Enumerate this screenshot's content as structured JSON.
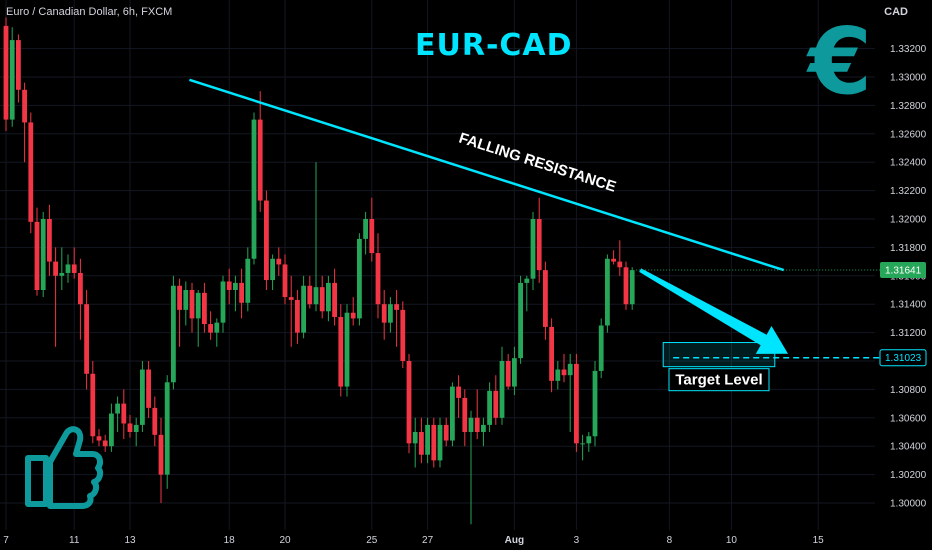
{
  "header": {
    "symbol_label": "Euro / Canadian Dollar, 6h, FXCM",
    "currency_label": "CAD"
  },
  "overlay": {
    "title": "EUR-CAD",
    "resistance_label": "FALLING RESISTANCE",
    "target_label": "Target Level",
    "euro_icon": "euro-sign-icon",
    "thumb_icon": "thumbs-up-icon"
  },
  "colors": {
    "background": "#000000",
    "up": "#26a658",
    "down": "#f23645",
    "accent": "#00e5ff",
    "euro": "#0e9a9c",
    "axis_text": "#d1d4dc"
  },
  "chart_data": {
    "type": "candlestick",
    "symbol": "EURCAD",
    "timeframe": "6h",
    "ylim": [
      1.299,
      1.335
    ],
    "y_ticks": [
      1.3,
      1.302,
      1.304,
      1.306,
      1.308,
      1.31,
      1.312,
      1.314,
      1.316,
      1.318,
      1.32,
      1.322,
      1.324,
      1.326,
      1.328,
      1.33,
      1.332
    ],
    "y_tick_labels": [
      "1.30000",
      "1.30200",
      "1.30400",
      "1.30600",
      "1.30800",
      "1.31000",
      "1.31200",
      "1.31400",
      "1.31600",
      "1.31800",
      "1.32000",
      "1.32200",
      "1.32400",
      "1.32600",
      "1.32800",
      "1.33000",
      "1.33200"
    ],
    "x_labels": [
      "7",
      "11",
      "13",
      "18",
      "20",
      "25",
      "27",
      "Aug",
      "3",
      "8",
      "10",
      "15"
    ],
    "x_label_index": [
      0,
      11,
      20,
      36,
      45,
      59,
      68,
      82,
      92,
      107,
      117,
      131
    ],
    "current_price": 1.31641,
    "current_price_label": "1.31641",
    "target_price": 1.31023,
    "target_price_label": "1.31023",
    "resistance_line": {
      "start_index": 32,
      "start_price": 1.3298,
      "end_index": 124,
      "end_price": 1.3164
    },
    "target_box": {
      "start_index": 106,
      "end_index": 124,
      "top": 1.3113,
      "bottom": 1.3096
    },
    "candles": [
      [
        1.3336,
        1.3342,
        1.3262,
        1.327
      ],
      [
        1.327,
        1.3335,
        1.3265,
        1.3326
      ],
      [
        1.3326,
        1.333,
        1.3282,
        1.3291
      ],
      [
        1.3291,
        1.3296,
        1.324,
        1.3268
      ],
      [
        1.3268,
        1.3275,
        1.319,
        1.3198
      ],
      [
        1.3198,
        1.3208,
        1.3146,
        1.315
      ],
      [
        1.315,
        1.3205,
        1.3145,
        1.32
      ],
      [
        1.32,
        1.321,
        1.316,
        1.317
      ],
      [
        1.317,
        1.318,
        1.311,
        1.316
      ],
      [
        1.316,
        1.318,
        1.315,
        1.3162
      ],
      [
        1.3162,
        1.3175,
        1.3155,
        1.3168
      ],
      [
        1.3168,
        1.318,
        1.3158,
        1.3162
      ],
      [
        1.3162,
        1.3172,
        1.3115,
        1.314
      ],
      [
        1.314,
        1.315,
        1.308,
        1.3091
      ],
      [
        1.3091,
        1.31,
        1.3042,
        1.3047
      ],
      [
        1.3047,
        1.3052,
        1.304,
        1.3044
      ],
      [
        1.3044,
        1.3048,
        1.3036,
        1.304
      ],
      [
        1.304,
        1.307,
        1.3036,
        1.3063
      ],
      [
        1.3063,
        1.3075,
        1.305,
        1.307
      ],
      [
        1.307,
        1.308,
        1.3045,
        1.3056
      ],
      [
        1.3056,
        1.3062,
        1.3046,
        1.305
      ],
      [
        1.305,
        1.306,
        1.304,
        1.3055
      ],
      [
        1.3055,
        1.31,
        1.305,
        1.3094
      ],
      [
        1.3094,
        1.31,
        1.306,
        1.3067
      ],
      [
        1.3067,
        1.3075,
        1.304,
        1.3048
      ],
      [
        1.3048,
        1.306,
        1.3,
        1.302
      ],
      [
        1.302,
        1.309,
        1.301,
        1.3085
      ],
      [
        1.3085,
        1.316,
        1.308,
        1.3153
      ],
      [
        1.3153,
        1.3158,
        1.311,
        1.3136
      ],
      [
        1.3136,
        1.3156,
        1.3125,
        1.315
      ],
      [
        1.315,
        1.3155,
        1.312,
        1.313
      ],
      [
        1.313,
        1.315,
        1.311,
        1.3148
      ],
      [
        1.3148,
        1.3155,
        1.312,
        1.3126
      ],
      [
        1.3126,
        1.3135,
        1.3115,
        1.312
      ],
      [
        1.312,
        1.313,
        1.311,
        1.3127
      ],
      [
        1.3127,
        1.316,
        1.312,
        1.3156
      ],
      [
        1.3156,
        1.3165,
        1.314,
        1.315
      ],
      [
        1.315,
        1.316,
        1.3135,
        1.3155
      ],
      [
        1.3155,
        1.3165,
        1.313,
        1.3141
      ],
      [
        1.3141,
        1.318,
        1.3135,
        1.3172
      ],
      [
        1.3172,
        1.3275,
        1.3168,
        1.327
      ],
      [
        1.327,
        1.329,
        1.3205,
        1.3213
      ],
      [
        1.3213,
        1.322,
        1.315,
        1.3157
      ],
      [
        1.3157,
        1.3175,
        1.315,
        1.3172
      ],
      [
        1.3172,
        1.318,
        1.316,
        1.3168
      ],
      [
        1.3168,
        1.3175,
        1.314,
        1.3145
      ],
      [
        1.3145,
        1.316,
        1.311,
        1.3143
      ],
      [
        1.3143,
        1.315,
        1.3112,
        1.312
      ],
      [
        1.312,
        1.316,
        1.3116,
        1.3153
      ],
      [
        1.3153,
        1.316,
        1.3137,
        1.314
      ],
      [
        1.314,
        1.324,
        1.3135,
        1.3152
      ],
      [
        1.3152,
        1.316,
        1.313,
        1.3135
      ],
      [
        1.3135,
        1.316,
        1.3128,
        1.3155
      ],
      [
        1.3155,
        1.3165,
        1.3125,
        1.3131
      ],
      [
        1.3131,
        1.314,
        1.3075,
        1.3082
      ],
      [
        1.3082,
        1.314,
        1.3075,
        1.3134
      ],
      [
        1.3134,
        1.3145,
        1.3125,
        1.313
      ],
      [
        1.313,
        1.319,
        1.3125,
        1.3186
      ],
      [
        1.3186,
        1.3205,
        1.3175,
        1.32
      ],
      [
        1.32,
        1.3215,
        1.317,
        1.3176
      ],
      [
        1.3176,
        1.319,
        1.313,
        1.314
      ],
      [
        1.314,
        1.315,
        1.3115,
        1.3127
      ],
      [
        1.3127,
        1.3145,
        1.312,
        1.314
      ],
      [
        1.314,
        1.315,
        1.311,
        1.3136
      ],
      [
        1.3136,
        1.3142,
        1.3095,
        1.31
      ],
      [
        1.31,
        1.3105,
        1.3035,
        1.3042
      ],
      [
        1.3042,
        1.306,
        1.3025,
        1.305
      ],
      [
        1.305,
        1.306,
        1.3028,
        1.3034
      ],
      [
        1.3034,
        1.306,
        1.3028,
        1.3055
      ],
      [
        1.3055,
        1.306,
        1.3025,
        1.303
      ],
      [
        1.303,
        1.306,
        1.3025,
        1.3055
      ],
      [
        1.3055,
        1.306,
        1.304,
        1.3044
      ],
      [
        1.3044,
        1.3085,
        1.304,
        1.3082
      ],
      [
        1.3082,
        1.309,
        1.306,
        1.3074
      ],
      [
        1.3074,
        1.308,
        1.304,
        1.305
      ],
      [
        1.305,
        1.3065,
        1.2985,
        1.306
      ],
      [
        1.306,
        1.308,
        1.3045,
        1.305
      ],
      [
        1.305,
        1.306,
        1.304,
        1.3055
      ],
      [
        1.3055,
        1.3085,
        1.305,
        1.3079
      ],
      [
        1.3079,
        1.309,
        1.3055,
        1.306
      ],
      [
        1.306,
        1.311,
        1.3055,
        1.31
      ],
      [
        1.31,
        1.3105,
        1.308,
        1.3082
      ],
      [
        1.3082,
        1.311,
        1.3076,
        1.3102
      ],
      [
        1.3102,
        1.316,
        1.3098,
        1.3155
      ],
      [
        1.3155,
        1.316,
        1.3135,
        1.3158
      ],
      [
        1.3158,
        1.3205,
        1.315,
        1.32
      ],
      [
        1.32,
        1.3215,
        1.3155,
        1.3164
      ],
      [
        1.3164,
        1.317,
        1.3115,
        1.3124
      ],
      [
        1.3124,
        1.313,
        1.3078,
        1.3086
      ],
      [
        1.3086,
        1.31,
        1.308,
        1.3094
      ],
      [
        1.3094,
        1.3105,
        1.3085,
        1.309
      ],
      [
        1.309,
        1.3105,
        1.305,
        1.3098
      ],
      [
        1.3098,
        1.3105,
        1.3036,
        1.3042
      ],
      [
        1.3042,
        1.3048,
        1.303,
        1.3042
      ],
      [
        1.3042,
        1.305,
        1.3036,
        1.3047
      ],
      [
        1.3047,
        1.31,
        1.304,
        1.3093
      ],
      [
        1.3093,
        1.313,
        1.3088,
        1.3125
      ],
      [
        1.3125,
        1.3175,
        1.312,
        1.3172
      ],
      [
        1.3172,
        1.3178,
        1.3168,
        1.317
      ],
      [
        1.317,
        1.3185,
        1.316,
        1.3166
      ],
      [
        1.3166,
        1.317,
        1.3136,
        1.314
      ],
      [
        1.314,
        1.3166,
        1.3136,
        1.3164
      ]
    ]
  }
}
